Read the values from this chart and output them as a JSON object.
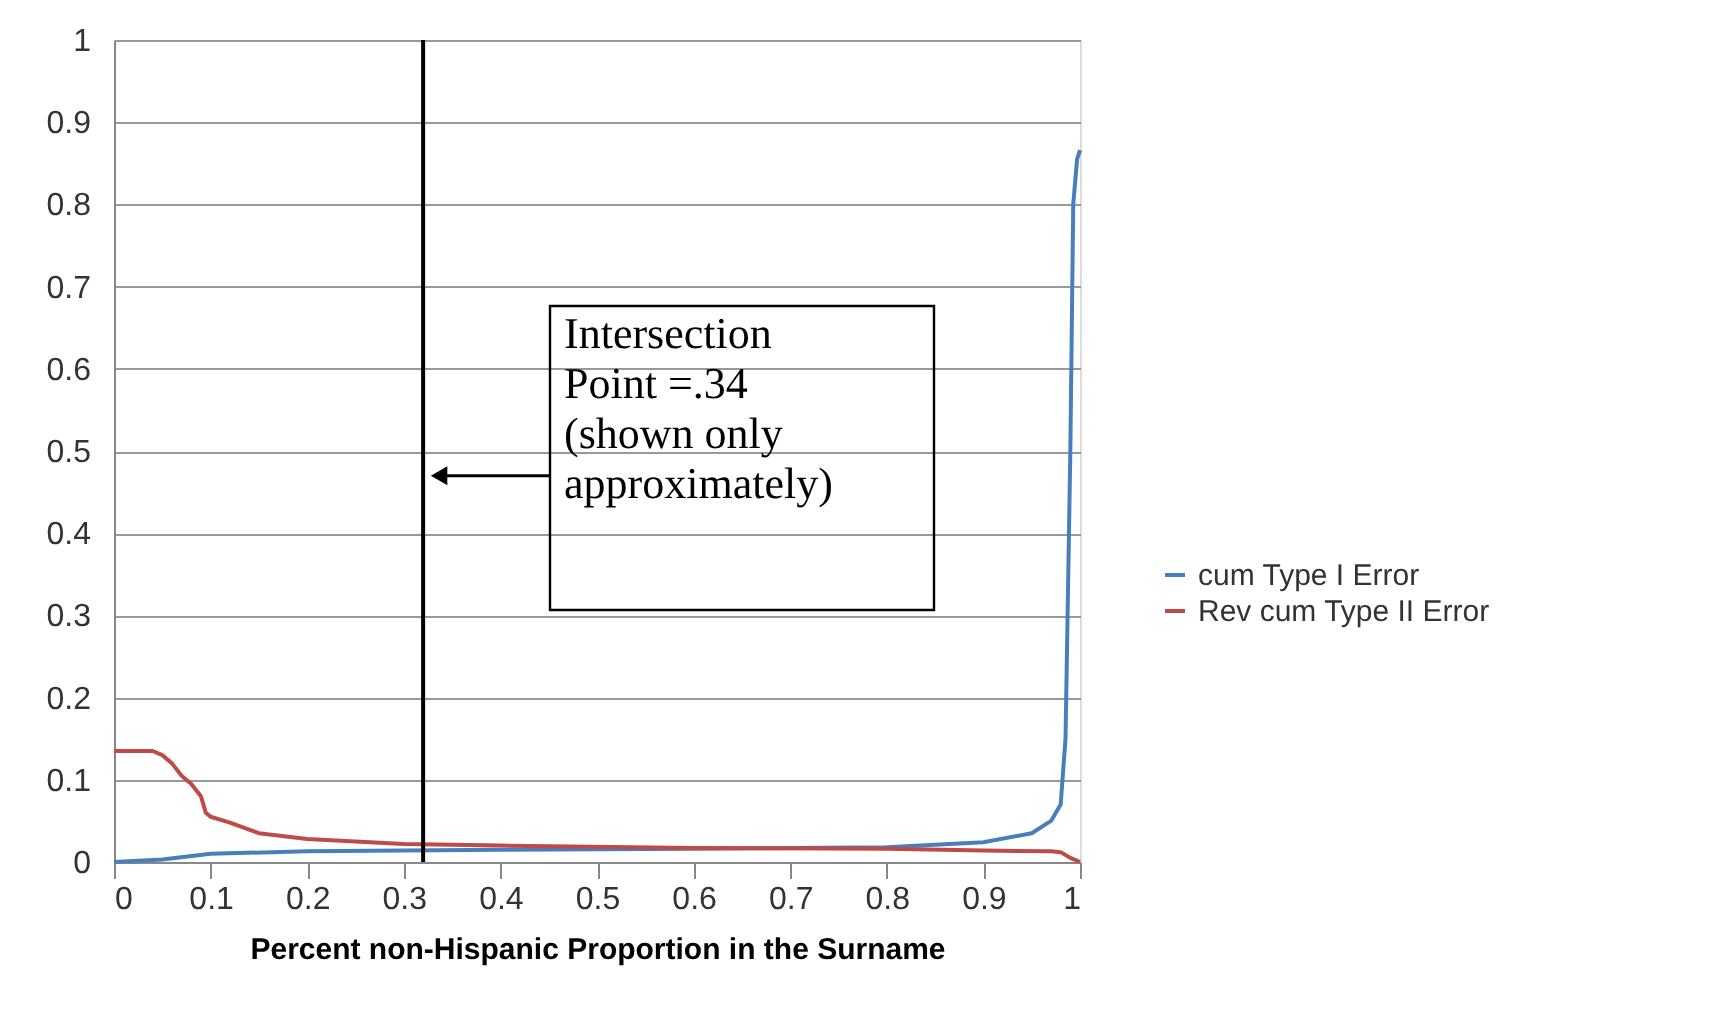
{
  "chart_data": {
    "type": "line",
    "xlabel": "Percent non-Hispanic Proportion  in the Surname",
    "xlim": [
      0,
      1
    ],
    "xticks": [
      0,
      0.1,
      0.2,
      0.3,
      0.4,
      0.5,
      0.6,
      0.7,
      0.8,
      0.9,
      1
    ],
    "ylim": [
      0,
      1
    ],
    "yticks": [
      0,
      0.1,
      0.2,
      0.3,
      0.4,
      0.5,
      0.6,
      0.7,
      0.8,
      0.9,
      1
    ],
    "grid": "y",
    "legend": "right",
    "marker": "none",
    "line_style": "solid",
    "series": [
      {
        "name": "cum Type I  Error",
        "color": "#4a7ebb",
        "x": [
          0,
          0.05,
          0.1,
          0.2,
          0.4,
          0.6,
          0.8,
          0.9,
          0.95,
          0.97,
          0.98,
          0.985,
          0.99,
          0.993,
          0.997,
          1.0
        ],
        "values": [
          0,
          0.003,
          0.01,
          0.013,
          0.015,
          0.016,
          0.018,
          0.024,
          0.035,
          0.05,
          0.07,
          0.15,
          0.5,
          0.8,
          0.855,
          0.866
        ]
      },
      {
        "name": "Rev cum Type II  Error",
        "color": "#be4b48",
        "x": [
          0,
          0.04,
          0.05,
          0.06,
          0.07,
          0.08,
          0.09,
          0.095,
          0.1,
          0.12,
          0.15,
          0.2,
          0.3,
          0.4,
          0.6,
          0.8,
          0.9,
          0.97,
          0.98,
          0.99,
          1.0
        ],
        "values": [
          0.135,
          0.135,
          0.13,
          0.12,
          0.105,
          0.095,
          0.08,
          0.06,
          0.055,
          0.048,
          0.035,
          0.028,
          0.022,
          0.02,
          0.017,
          0.016,
          0.014,
          0.013,
          0.012,
          0.005,
          0.0
        ]
      }
    ],
    "ref_lines": [
      {
        "axis": "x",
        "value": 0.32,
        "color": "#000000"
      }
    ],
    "annotations": [
      {
        "text": "Intersection\nPoint =.34\n(shown only\napproximately)",
        "x": 0.32,
        "y": 0.47
      }
    ]
  }
}
